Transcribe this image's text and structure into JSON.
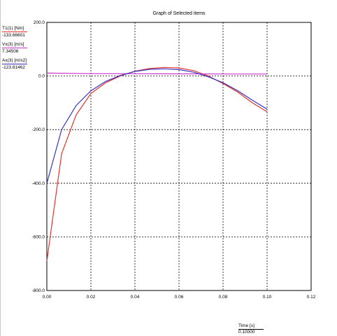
{
  "chart_data": {
    "type": "line",
    "title": "Graph of Selected items",
    "xlabel": "Time [s]",
    "xlim": [
      0.0,
      0.12
    ],
    "ylim": [
      -800.0,
      200.0
    ],
    "x_ticks": [
      0.0,
      0.02,
      0.04,
      0.06,
      0.08,
      0.1,
      0.12
    ],
    "y_ticks": [
      -800.0,
      -600.0,
      -400.0,
      -200.0,
      0.0,
      200.0
    ],
    "x_tick_labels": [
      "0.00",
      "0.02",
      "0.04",
      "0.06",
      "0.08",
      "0.10",
      "0.12"
    ],
    "y_tick_labels": [
      "-800.0",
      "-600.0",
      "-400.0",
      "-200.0",
      "0.0",
      "200.0"
    ],
    "grid": true,
    "legend_position": "top-left",
    "current_time": "0.10000",
    "series": [
      {
        "name": "T1(1) [Nm]",
        "current_value": "-133.66601",
        "color": "#e8302c",
        "x": [
          0.0,
          0.0067,
          0.0133,
          0.02,
          0.0267,
          0.0333,
          0.04,
          0.0467,
          0.0533,
          0.06,
          0.0667,
          0.0733,
          0.08,
          0.0867,
          0.0933,
          0.1
        ],
        "y": [
          -690,
          -290,
          -145,
          -65,
          -25,
          0,
          18,
          28,
          32,
          30,
          20,
          0,
          -28,
          -60,
          -100,
          -133.67
        ]
      },
      {
        "name": "Vx(3) [m/s]",
        "current_value": "7.34506",
        "color": "#cc33cc",
        "x": [
          0.0,
          0.02,
          0.04,
          0.06,
          0.08,
          0.1
        ],
        "y": [
          11,
          9,
          8.5,
          8,
          7.6,
          7.35
        ]
      },
      {
        "name": "Ax(3) [m/s2]",
        "current_value": "-123.81462",
        "color": "#3434c8",
        "x": [
          0.0,
          0.0067,
          0.0133,
          0.02,
          0.0267,
          0.0333,
          0.04,
          0.0467,
          0.0533,
          0.06,
          0.0667,
          0.0733,
          0.08,
          0.0867,
          0.0933,
          0.1
        ],
        "y": [
          -400,
          -200,
          -110,
          -55,
          -20,
          2,
          17,
          25,
          27,
          24,
          14,
          -3,
          -25,
          -55,
          -90,
          -123.81
        ]
      }
    ]
  }
}
